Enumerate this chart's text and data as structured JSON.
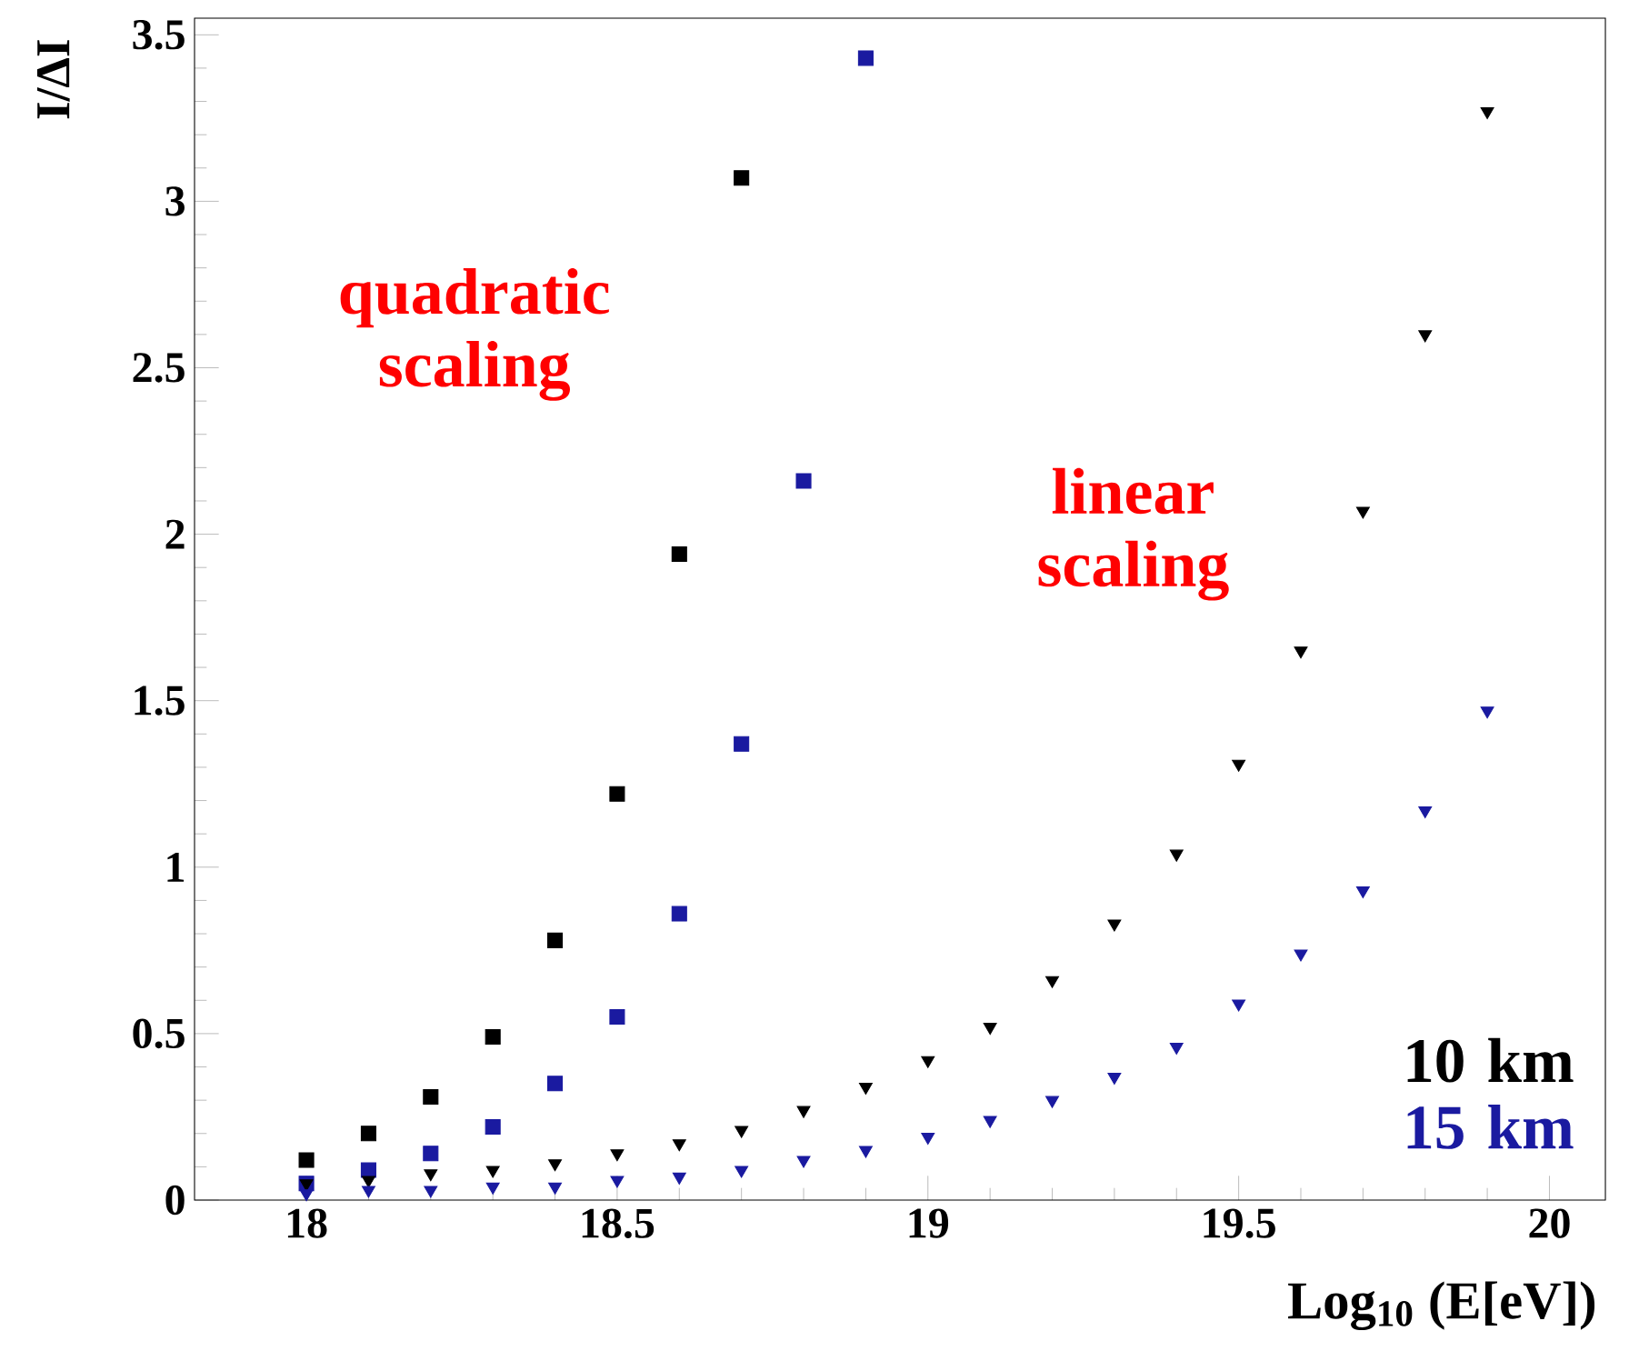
{
  "chart_data": {
    "type": "scatter",
    "xlabel": "Log$_{10}$ (E[eV])",
    "ylabel": "I/ΔI",
    "xlim": [
      17.82,
      20.09
    ],
    "ylim": [
      0,
      3.55
    ],
    "xticks": [
      18,
      18.5,
      19,
      19.5,
      20
    ],
    "yticks": [
      0,
      0.5,
      1,
      1.5,
      2,
      2.5,
      3,
      3.5
    ],
    "grid": false,
    "annotations": [
      "quadratic scaling",
      "linear scaling",
      "10 km",
      "15 km"
    ],
    "series": [
      {
        "color": "#000000",
        "marker": "square",
        "x": [
          18,
          18.1,
          18.2,
          18.3,
          18.4,
          18.5,
          18.6,
          18.7
        ],
        "values": [
          0.12,
          0.2,
          0.31,
          0.49,
          0.78,
          1.22,
          1.94,
          3.07
        ]
      },
      {
        "color": "#1a1aa0",
        "marker": "square",
        "x": [
          18,
          18.1,
          18.2,
          18.3,
          18.4,
          18.5,
          18.6,
          18.7,
          18.8,
          18.9
        ],
        "values": [
          0.05,
          0.09,
          0.14,
          0.22,
          0.35,
          0.55,
          0.86,
          1.37,
          2.16,
          3.43
        ]
      },
      {
        "color": "#000000",
        "marker": "triangle",
        "x": [
          18,
          18.1,
          18.2,
          18.3,
          18.4,
          18.5,
          18.6,
          18.7,
          18.8,
          18.9,
          19,
          19.1,
          19.2,
          19.3,
          19.4,
          19.5,
          19.6,
          19.7,
          19.8,
          19.9
        ],
        "values": [
          0.05,
          0.06,
          0.08,
          0.09,
          0.11,
          0.14,
          0.17,
          0.21,
          0.27,
          0.34,
          0.42,
          0.52,
          0.66,
          0.83,
          1.04,
          1.31,
          1.65,
          2.07,
          2.6,
          3.27
        ]
      },
      {
        "color": "#1a1aa0",
        "marker": "triangle",
        "x": [
          18,
          18.1,
          18.2,
          18.3,
          18.4,
          18.5,
          18.6,
          18.7,
          18.8,
          18.9,
          19,
          19.1,
          19.2,
          19.3,
          19.4,
          19.5,
          19.6,
          19.7,
          19.8,
          19.9
        ],
        "values": [
          0.02,
          0.03,
          0.03,
          0.04,
          0.04,
          0.06,
          0.07,
          0.09,
          0.12,
          0.15,
          0.19,
          0.24,
          0.3,
          0.37,
          0.46,
          0.59,
          0.74,
          0.93,
          1.17,
          1.47
        ]
      }
    ]
  }
}
